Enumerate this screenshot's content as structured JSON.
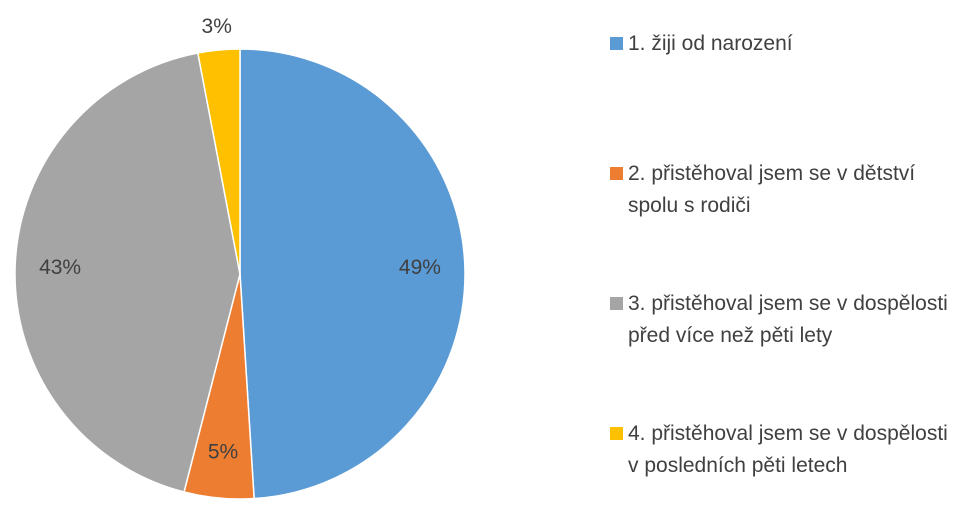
{
  "chart_data": {
    "type": "pie",
    "categories": [
      "1. žiji od narození",
      "2. přistěhoval jsem se v dětství spolu s rodiči",
      "3. přistěhoval jsem se v dospělosti před více než pěti lety",
      "4. přistěhoval jsem se v dospělosti v posledních pěti letech"
    ],
    "values": [
      49,
      5,
      43,
      3
    ],
    "value_labels": [
      "49%",
      "5%",
      "43%",
      "3%"
    ],
    "colors": [
      "#5b9bd5",
      "#ed7d31",
      "#a5a5a5",
      "#ffc000"
    ],
    "legend": "right"
  }
}
